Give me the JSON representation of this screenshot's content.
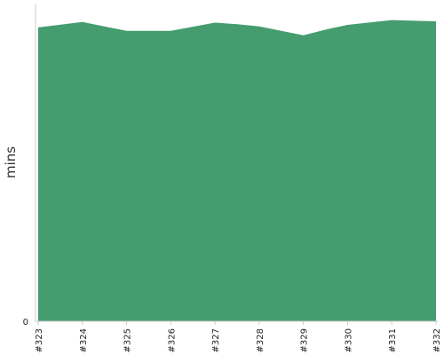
{
  "chart_data": {
    "type": "area",
    "xlabel": "",
    "ylabel": "mins",
    "categories": [
      "#323",
      "#324",
      "#325",
      "#326",
      "#327",
      "#328",
      "#329",
      "#330",
      "#331",
      "#332"
    ],
    "x": [
      0,
      1,
      2,
      3,
      3.5,
      4,
      4.5,
      5,
      6,
      6.5,
      7,
      8,
      8.5,
      9
    ],
    "values": [
      92.5,
      94.2,
      91.4,
      91.4,
      92.7,
      94.0,
      93.5,
      92.8,
      90.0,
      91.8,
      93.3,
      94.8,
      94.6,
      94.4
    ],
    "ylim": [
      0,
      100
    ],
    "yticks": [
      0
    ],
    "grid": false,
    "legend": "none",
    "fill_color": "#459C6E",
    "axis_color": "#cccccc"
  }
}
